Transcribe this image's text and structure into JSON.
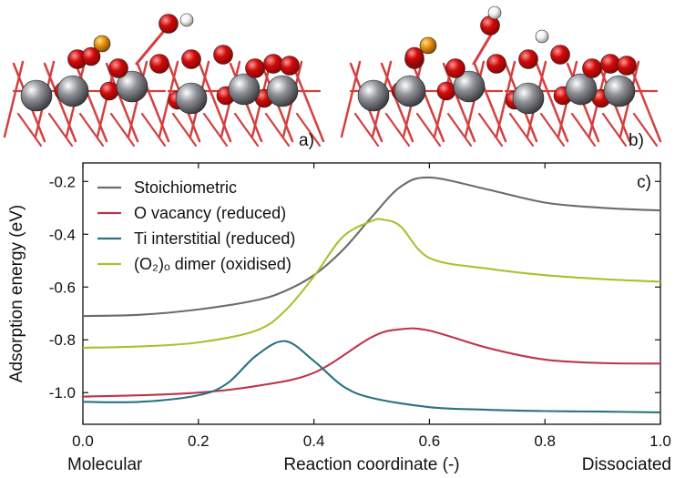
{
  "panels": {
    "a": {
      "label": "a)"
    },
    "b": {
      "label": "b)"
    }
  },
  "atom_colors": {
    "titanium": "#8f9196",
    "oxygen": "#d10a0a",
    "oxygen_dark": "#8a0505",
    "bond": "#d44040",
    "hydrogen": "#f4f4f4",
    "gold_oxygen": "#e8920f"
  },
  "chart_data": {
    "type": "line",
    "panel_label": "c)",
    "xlabel": "Reaction coordinate (-)",
    "ylabel": "Adsorption energy (eV)",
    "x_end_labels": {
      "left": "Molecular",
      "right": "Dissociated"
    },
    "xlim": [
      0.0,
      1.0
    ],
    "ylim": [
      -1.12,
      -0.13
    ],
    "xticks": [
      "0.0",
      "0.2",
      "0.4",
      "0.6",
      "0.8",
      "1.0"
    ],
    "yticks": [
      "-0.2",
      "-0.4",
      "-0.6",
      "-0.8",
      "-1.0"
    ],
    "grid": false,
    "legend_position": "top-left",
    "series": [
      {
        "name": "Stoichiometric",
        "color": "#6b6b6b",
        "x": [
          0.0,
          0.1,
          0.2,
          0.3,
          0.35,
          0.4,
          0.45,
          0.5,
          0.55,
          0.6,
          0.7,
          0.8,
          0.9,
          1.0
        ],
        "y": [
          -0.71,
          -0.705,
          -0.685,
          -0.65,
          -0.615,
          -0.555,
          -0.46,
          -0.335,
          -0.22,
          -0.185,
          -0.23,
          -0.28,
          -0.3,
          -0.31
        ]
      },
      {
        "name": "O vacancy (reduced)",
        "color": "#c0344a",
        "x": [
          0.0,
          0.1,
          0.2,
          0.3,
          0.4,
          0.5,
          0.55,
          0.6,
          0.7,
          0.8,
          0.9,
          1.0
        ],
        "y": [
          -1.015,
          -1.01,
          -1.0,
          -0.975,
          -0.925,
          -0.79,
          -0.76,
          -0.765,
          -0.83,
          -0.875,
          -0.888,
          -0.89
        ]
      },
      {
        "name": "Ti interstitial (reduced)",
        "color": "#2a7280",
        "x": [
          0.0,
          0.1,
          0.2,
          0.25,
          0.3,
          0.35,
          0.4,
          0.45,
          0.5,
          0.6,
          0.7,
          0.8,
          0.9,
          1.0
        ],
        "y": [
          -1.035,
          -1.035,
          -1.01,
          -0.965,
          -0.86,
          -0.805,
          -0.88,
          -0.975,
          -1.02,
          -1.055,
          -1.065,
          -1.07,
          -1.072,
          -1.075
        ]
      },
      {
        "name": "(O₂)ₒ dimer (oxidised)",
        "color": "#a8c230",
        "x": [
          0.0,
          0.1,
          0.2,
          0.3,
          0.35,
          0.4,
          0.45,
          0.5,
          0.52,
          0.55,
          0.6,
          0.7,
          0.8,
          0.9,
          1.0
        ],
        "y": [
          -0.83,
          -0.825,
          -0.81,
          -0.765,
          -0.69,
          -0.56,
          -0.41,
          -0.35,
          -0.345,
          -0.37,
          -0.49,
          -0.53,
          -0.555,
          -0.57,
          -0.58
        ]
      }
    ]
  }
}
